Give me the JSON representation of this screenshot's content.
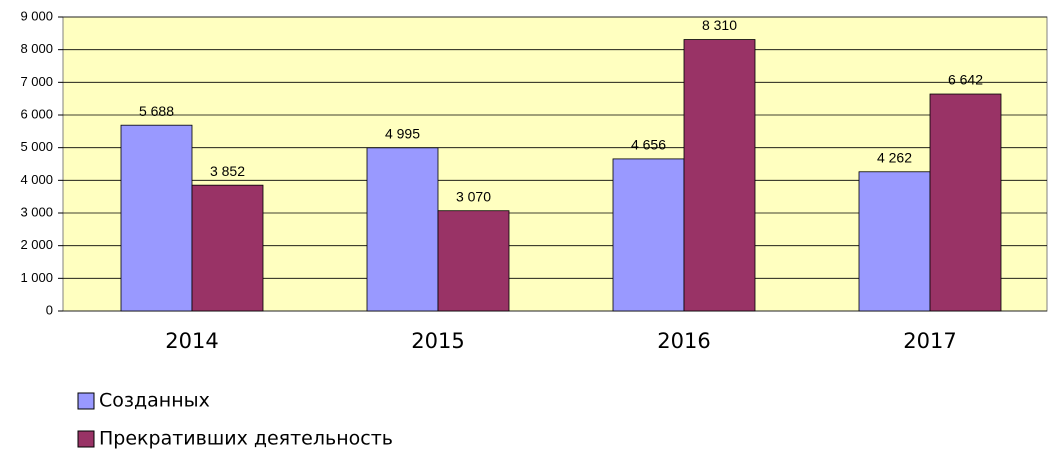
{
  "chart_data": {
    "type": "bar",
    "categories": [
      "2014",
      "2015",
      "2016",
      "2017"
    ],
    "series": [
      {
        "name": "Созданных",
        "color": "#9999ff",
        "values": [
          5688,
          4995,
          4656,
          4262
        ],
        "value_labels": [
          "5 688",
          "4 995",
          "4 656",
          "4 262"
        ]
      },
      {
        "name": "Прекративших деятельность",
        "color": "#993366",
        "values": [
          3852,
          3070,
          8310,
          6642
        ],
        "value_labels": [
          "3 852",
          "3 070",
          "8 310",
          "6 642"
        ]
      }
    ],
    "ylim": [
      0,
      9000
    ],
    "yticks": [
      0,
      {
        "value": 1000,
        "label": "1 000"
      },
      {
        "value": 2000,
        "label": "2 000"
      },
      {
        "value": 3000,
        "label": "3 000"
      },
      {
        "value": 4000,
        "label": "4 000"
      },
      {
        "value": 5000,
        "label": "5 000"
      },
      {
        "value": 6000,
        "label": "6 000"
      },
      {
        "value": 7000,
        "label": "7 000"
      },
      {
        "value": 8000,
        "label": "8 000"
      },
      {
        "value": 9000,
        "label": "9 000"
      }
    ],
    "grid": true,
    "legend": "bottom-left",
    "background": "#ffffc0"
  }
}
